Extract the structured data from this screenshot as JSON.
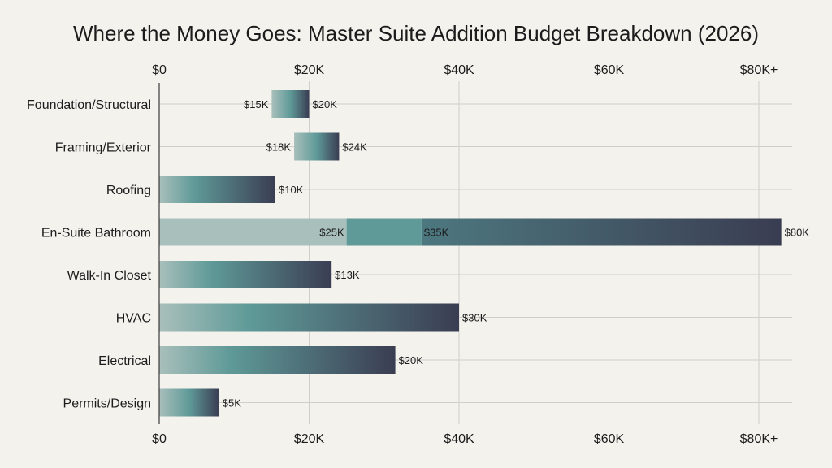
{
  "chart_data": {
    "type": "bar",
    "orientation": "horizontal",
    "title": "Where the Money Goes: Master Suite Addition Budget Breakdown (2026)",
    "x_ticks": [
      "$0",
      "$20K",
      "$40K",
      "$60K",
      "$80K+"
    ],
    "x_tick_values": [
      0,
      20,
      40,
      60,
      80
    ],
    "xlim": [
      0,
      85
    ],
    "grid": true,
    "colors": {
      "light": "#a9bfbb",
      "mid": "#5f9a98",
      "dark": "#3a3d52"
    },
    "categories": [
      {
        "name": "Foundation/Structural",
        "low": 15,
        "high": 20,
        "labels": [
          "$15K",
          "$20K"
        ]
      },
      {
        "name": "Framing/Exterior",
        "low": 18,
        "high": 24,
        "labels": [
          "$18K",
          "$24K"
        ]
      },
      {
        "name": "Roofing",
        "low": 0,
        "high": 15.5,
        "labels": [
          "$10K"
        ]
      },
      {
        "name": "En-Suite Bathroom",
        "low": 0,
        "high": 83,
        "labels": [
          "$25K",
          "$35K",
          "$80K"
        ],
        "segments": [
          25,
          35
        ]
      },
      {
        "name": "Walk-In Closet",
        "low": 0,
        "high": 23,
        "labels": [
          "$13K"
        ]
      },
      {
        "name": "HVAC",
        "low": 0,
        "high": 40,
        "labels": [
          "$30K"
        ]
      },
      {
        "name": "Electrical",
        "low": 0,
        "high": 31.5,
        "labels": [
          "$20K"
        ]
      },
      {
        "name": "Permits/Design",
        "low": 0,
        "high": 8,
        "labels": [
          "$5K"
        ]
      }
    ]
  }
}
